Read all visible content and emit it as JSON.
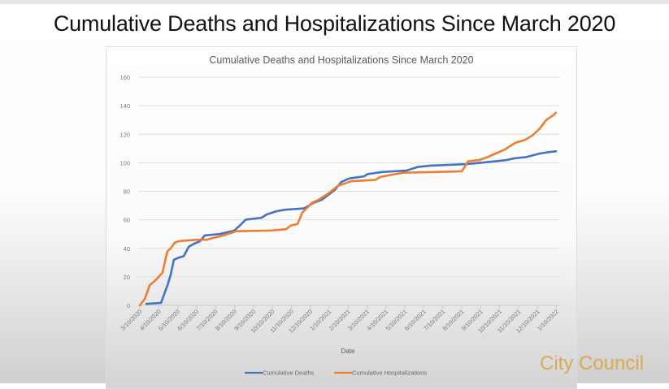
{
  "slide": {
    "title": "Cumulative Deaths and Hospitalizations Since March 2020",
    "brand": "City Council"
  },
  "chart_data": {
    "type": "line",
    "title": "Cumulative Deaths and Hospitalizations Since March 2020",
    "xlabel": "Date",
    "ylabel": "",
    "ylim": [
      0,
      160
    ],
    "yticks": [
      0,
      20,
      40,
      60,
      80,
      100,
      120,
      140,
      160
    ],
    "xticks": [
      "3/10/2020",
      "4/10/2020",
      "5/10/2020",
      "6/10/2020",
      "7/10/2020",
      "8/10/2020",
      "9/10/2020",
      "10/10/2020",
      "11/10/2020",
      "12/10/2020",
      "1/10/2021",
      "2/10/2021",
      "3/10/2021",
      "4/10/2021",
      "5/10/2021",
      "6/10/2021",
      "7/10/2021",
      "8/10/2021",
      "9/10/2021",
      "10/10/2021",
      "11/10/2021",
      "12/10/2021",
      "1/10/2022"
    ],
    "x_units": "months since 3/10/2020",
    "grid": true,
    "legend": "bottom",
    "series": [
      {
        "name": "Cumulative Deaths",
        "color": "#4472c4",
        "points": [
          [
            0.34,
            1
          ],
          [
            1.12,
            1.7
          ],
          [
            1.29,
            8
          ],
          [
            1.46,
            14
          ],
          [
            1.63,
            21.5
          ],
          [
            1.8,
            32
          ],
          [
            2.06,
            33.5
          ],
          [
            2.32,
            34.5
          ],
          [
            2.58,
            41
          ],
          [
            2.83,
            43
          ],
          [
            3.18,
            45
          ],
          [
            3.43,
            49
          ],
          [
            4.21,
            50
          ],
          [
            4.98,
            52.4
          ],
          [
            5.32,
            56.5
          ],
          [
            5.58,
            60
          ],
          [
            6.44,
            61.5
          ],
          [
            6.7,
            63.7
          ],
          [
            7.21,
            66
          ],
          [
            7.64,
            67
          ],
          [
            8.67,
            68
          ],
          [
            9.18,
            72
          ],
          [
            9.61,
            74
          ],
          [
            9.96,
            77.5
          ],
          [
            10.3,
            81
          ],
          [
            10.64,
            86.5
          ],
          [
            11.07,
            89
          ],
          [
            11.85,
            90.5
          ],
          [
            12.02,
            92
          ],
          [
            12.79,
            93.5
          ],
          [
            14.08,
            94.5
          ],
          [
            14.68,
            97
          ],
          [
            15.36,
            98
          ],
          [
            17.25,
            99
          ],
          [
            18.8,
            101
          ],
          [
            19.4,
            102
          ],
          [
            19.74,
            103
          ],
          [
            20.43,
            104
          ],
          [
            21.12,
            106.5
          ],
          [
            21.63,
            107.5
          ],
          [
            21.97,
            108
          ]
        ]
      },
      {
        "name": "Cumulative Hospitalizations",
        "color": "#ed7d31",
        "points": [
          [
            0,
            0
          ],
          [
            0.26,
            4.5
          ],
          [
            0.52,
            14
          ],
          [
            0.86,
            18
          ],
          [
            1.2,
            23
          ],
          [
            1.33,
            31
          ],
          [
            1.46,
            38
          ],
          [
            1.63,
            40
          ],
          [
            1.85,
            44
          ],
          [
            2.06,
            45
          ],
          [
            3.0,
            46
          ],
          [
            3.56,
            46
          ],
          [
            3.78,
            47
          ],
          [
            4.42,
            49
          ],
          [
            5.11,
            52
          ],
          [
            6.78,
            52.4
          ],
          [
            7.42,
            53
          ],
          [
            7.73,
            53.5
          ],
          [
            7.98,
            56
          ],
          [
            8.33,
            57
          ],
          [
            8.58,
            65
          ],
          [
            9.1,
            72
          ],
          [
            9.44,
            74
          ],
          [
            9.96,
            78.5
          ],
          [
            10.47,
            84
          ],
          [
            10.73,
            85
          ],
          [
            11.16,
            87
          ],
          [
            12.45,
            88
          ],
          [
            12.7,
            90
          ],
          [
            13.48,
            92
          ],
          [
            13.91,
            93
          ],
          [
            17.0,
            94
          ],
          [
            17.34,
            101
          ],
          [
            17.94,
            102
          ],
          [
            18.28,
            103.5
          ],
          [
            18.8,
            106.5
          ],
          [
            19.23,
            109
          ],
          [
            19.83,
            114
          ],
          [
            20.34,
            116
          ],
          [
            20.77,
            119.5
          ],
          [
            21.12,
            124
          ],
          [
            21.46,
            130
          ],
          [
            21.8,
            133
          ],
          [
            21.97,
            135
          ]
        ]
      }
    ]
  }
}
